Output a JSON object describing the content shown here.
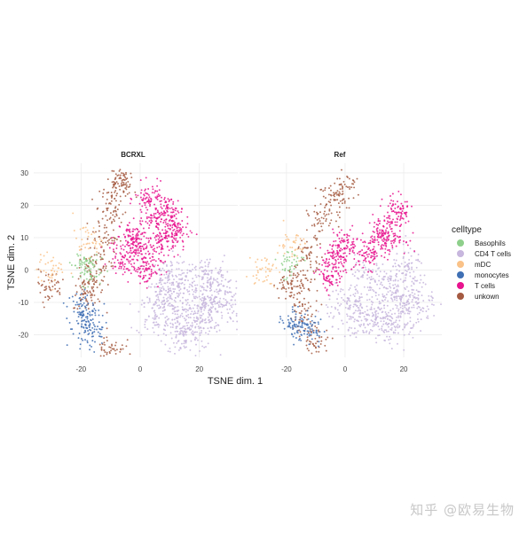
{
  "chart_data": {
    "type": "scatter",
    "xlabel": "TSNE dim. 1",
    "ylabel": "TSNE dim. 2",
    "xlim": [
      -36,
      33
    ],
    "ylim": [
      -27,
      33
    ],
    "xticks": [
      -20,
      0,
      20
    ],
    "yticks": [
      -20,
      -10,
      0,
      10,
      20,
      30
    ],
    "grid": true,
    "legend": {
      "title": "celltype",
      "placement": "right",
      "entries": [
        {
          "name": "Basophils",
          "color": "#8ed08b"
        },
        {
          "name": "CD4 T cells",
          "color": "#c7b6dd"
        },
        {
          "name": "mDC",
          "color": "#fac288"
        },
        {
          "name": "monocytes",
          "color": "#3f6fb4"
        },
        {
          "name": "T cells",
          "color": "#e8138e"
        },
        {
          "name": "unkown",
          "color": "#a45a41"
        }
      ]
    },
    "panels": [
      {
        "title": "BCRXL",
        "clusters": [
          {
            "celltype": "CD4 T cells",
            "points": [
              [
                12,
                -5
              ],
              [
                18,
                -8
              ],
              [
                24,
                -12
              ],
              [
                15,
                -15
              ],
              [
                20,
                -18
              ],
              [
                8,
                -10
              ],
              [
                10,
                -2
              ],
              [
                26,
                -5
              ],
              [
                22,
                -2
              ],
              [
                14,
                -20
              ],
              [
                5,
                -14
              ],
              [
                28,
                -10
              ]
            ]
          },
          {
            "celltype": "T cells",
            "points": [
              [
                -2,
                10
              ],
              [
                5,
                15
              ],
              [
                10,
                18
              ],
              [
                0,
                6
              ],
              [
                8,
                8
              ],
              [
                3,
                22
              ],
              [
                12,
                12
              ],
              [
                -6,
                4
              ],
              [
                2,
                0
              ]
            ]
          },
          {
            "celltype": "unkown",
            "points": [
              [
                -8,
                25
              ],
              [
                -10,
                18
              ],
              [
                -12,
                10
              ],
              [
                -14,
                2
              ],
              [
                -7,
                28
              ],
              [
                -16,
                -4
              ],
              [
                -18,
                -8
              ],
              [
                -10,
                -24
              ],
              [
                -31,
                -5
              ]
            ]
          },
          {
            "celltype": "monocytes",
            "points": [
              [
                -19,
                -14
              ],
              [
                -18,
                -20
              ],
              [
                -16,
                -17
              ],
              [
                -20,
                -11
              ]
            ]
          },
          {
            "celltype": "mDC",
            "points": [
              [
                -18,
                9
              ],
              [
                -30,
                0
              ]
            ]
          },
          {
            "celltype": "Basophils",
            "points": [
              [
                -19,
                2
              ],
              [
                -18,
                0
              ]
            ]
          }
        ]
      },
      {
        "title": "Ref",
        "clusters": [
          {
            "celltype": "CD4 T cells",
            "points": [
              [
                15,
                -5
              ],
              [
                10,
                -12
              ],
              [
                20,
                -8
              ],
              [
                5,
                -15
              ],
              [
                18,
                -15
              ],
              [
                25,
                -10
              ],
              [
                8,
                -2
              ],
              [
                0,
                -10
              ],
              [
                22,
                0
              ],
              [
                13,
                -18
              ]
            ]
          },
          {
            "celltype": "T cells",
            "points": [
              [
                12,
                12
              ],
              [
                16,
                10
              ],
              [
                8,
                5
              ],
              [
                -5,
                -2
              ],
              [
                0,
                8
              ],
              [
                18,
                18
              ],
              [
                -3,
                4
              ]
            ]
          },
          {
            "celltype": "unkown",
            "points": [
              [
                -5,
                22
              ],
              [
                0,
                25
              ],
              [
                -8,
                15
              ],
              [
                -12,
                5
              ],
              [
                -15,
                -3
              ],
              [
                -10,
                -22
              ],
              [
                -14,
                -14
              ],
              [
                -19,
                -5
              ]
            ]
          },
          {
            "celltype": "monocytes",
            "points": [
              [
                -14,
                -17
              ],
              [
                -18,
                -16
              ],
              [
                -12,
                -19
              ]
            ]
          },
          {
            "celltype": "mDC",
            "points": [
              [
                -28,
                0
              ],
              [
                -18,
                8
              ]
            ]
          },
          {
            "celltype": "Basophils",
            "points": [
              [
                -19,
                2
              ]
            ]
          }
        ]
      }
    ]
  },
  "watermark": "知乎 @欧易生物"
}
